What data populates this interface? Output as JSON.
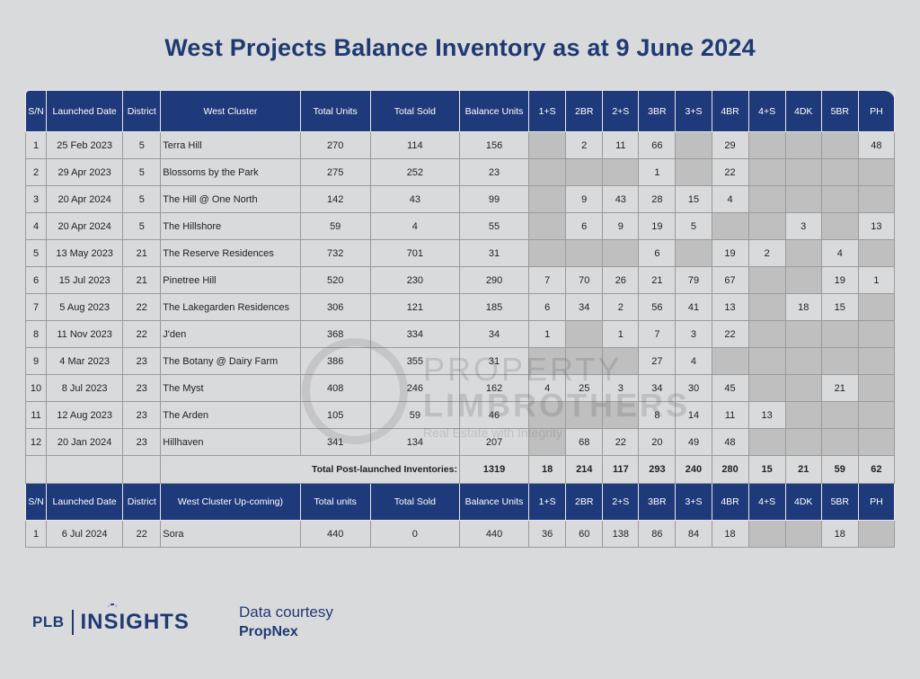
{
  "title": "West Projects Balance Inventory as at 9 June 2024",
  "header": [
    "S/N",
    "Launched Date",
    "District",
    "West Cluster",
    "Total Units",
    "Total Sold",
    "Balance Units",
    "1+S",
    "2BR",
    "2+S",
    "3BR",
    "3+S",
    "4BR",
    "4+S",
    "4DK",
    "5BR",
    "PH"
  ],
  "rows": [
    [
      "1",
      "25 Feb 2023",
      "5",
      "Terra Hill",
      "270",
      "114",
      "156",
      "",
      "2",
      "11",
      "66",
      "",
      "29",
      "",
      "",
      "",
      "48"
    ],
    [
      "2",
      "29 Apr 2023",
      "5",
      "Blossoms by the Park",
      "275",
      "252",
      "23",
      "",
      "",
      "",
      "1",
      "",
      "22",
      "",
      "",
      "",
      ""
    ],
    [
      "3",
      "20 Apr 2024",
      "5",
      "The Hill @ One North",
      "142",
      "43",
      "99",
      "",
      "9",
      "43",
      "28",
      "15",
      "4",
      "",
      "",
      "",
      ""
    ],
    [
      "4",
      "20 Apr 2024",
      "5",
      "The Hillshore",
      "59",
      "4",
      "55",
      "",
      "6",
      "9",
      "19",
      "5",
      "",
      "",
      "3",
      "",
      "13"
    ],
    [
      "5",
      "13 May 2023",
      "21",
      "The Reserve Residences",
      "732",
      "701",
      "31",
      "",
      "",
      "",
      "6",
      "",
      "19",
      "2",
      "",
      "4",
      ""
    ],
    [
      "6",
      "15 Jul 2023",
      "21",
      "Pinetree Hill",
      "520",
      "230",
      "290",
      "7",
      "70",
      "26",
      "21",
      "79",
      "67",
      "",
      "",
      "19",
      "1"
    ],
    [
      "7",
      "5 Aug 2023",
      "22",
      "The Lakegarden Residences",
      "306",
      "121",
      "185",
      "6",
      "34",
      "2",
      "56",
      "41",
      "13",
      "",
      "18",
      "15",
      ""
    ],
    [
      "8",
      "11 Nov 2023",
      "22",
      "J'den",
      "368",
      "334",
      "34",
      "1",
      "",
      "1",
      "7",
      "3",
      "22",
      "",
      "",
      "",
      ""
    ],
    [
      "9",
      "4 Mar 2023",
      "23",
      "The Botany @ Dairy Farm",
      "386",
      "355",
      "31",
      "",
      "",
      "",
      "27",
      "4",
      "",
      "",
      "",
      "",
      ""
    ],
    [
      "10",
      "8 Jul 2023",
      "23",
      "The Myst",
      "408",
      "246",
      "162",
      "4",
      "25",
      "3",
      "34",
      "30",
      "45",
      "",
      "",
      "21",
      ""
    ],
    [
      "11",
      "12 Aug 2023",
      "23",
      "The Arden",
      "105",
      "59",
      "46",
      "",
      "",
      "",
      "8",
      "14",
      "11",
      "13",
      "",
      "",
      ""
    ],
    [
      "12",
      "20 Jan 2024",
      "23",
      "Hillhaven",
      "341",
      "134",
      "207",
      "",
      "68",
      "22",
      "20",
      "49",
      "48",
      "",
      "",
      "",
      ""
    ]
  ],
  "gray_cells": [
    [
      7,
      11,
      13,
      14,
      15
    ],
    [
      7,
      8,
      9,
      11,
      13,
      14,
      15,
      16
    ],
    [
      7,
      13,
      14,
      15,
      16
    ],
    [
      7,
      12,
      13,
      15
    ],
    [
      7,
      8,
      9,
      11,
      14,
      16
    ],
    [
      13,
      14
    ],
    [
      13,
      16
    ],
    [
      8,
      13,
      14,
      15,
      16
    ],
    [
      7,
      8,
      9,
      12,
      13,
      14,
      15,
      16
    ],
    [
      13,
      14,
      16
    ],
    [
      7,
      8,
      9,
      14,
      15,
      16
    ],
    [
      7,
      13,
      14,
      15,
      16
    ]
  ],
  "total": {
    "label": "Total Post-launched Inventories:",
    "values": [
      "1319",
      "18",
      "214",
      "117",
      "293",
      "240",
      "280",
      "15",
      "21",
      "59",
      "62"
    ]
  },
  "upcoming_header": [
    "S/N",
    "Launched Date",
    "District",
    "West Cluster Up-coming)",
    "Total units",
    "Total Sold",
    "Balance Units",
    "1+S",
    "2BR",
    "2+S",
    "3BR",
    "3+S",
    "4BR",
    "4+S",
    "4DK",
    "5BR",
    "PH"
  ],
  "upcoming_rows": [
    [
      "1",
      "6 Jul 2024",
      "22",
      "Sora",
      "440",
      "0",
      "440",
      "36",
      "60",
      "138",
      "86",
      "84",
      "18",
      "",
      "",
      "18",
      ""
    ]
  ],
  "upcoming_gray_cells": [
    [
      13,
      14,
      16
    ]
  ],
  "watermark": {
    "line1": "PROPERTY",
    "line2": "LIMBROTHERS",
    "line3": "Real Estate with Integrity"
  },
  "footer": {
    "brand_left": "PLB",
    "brand_right": "INSIGHTS",
    "courtesy_line1": "Data courtesy",
    "courtesy_line2": "PropNex"
  },
  "colors": {
    "header_bg": "#1f3a7a",
    "title": "#1f3a73",
    "page_bg": "#d9dadc",
    "empty_cell": "#bfbfbf"
  }
}
